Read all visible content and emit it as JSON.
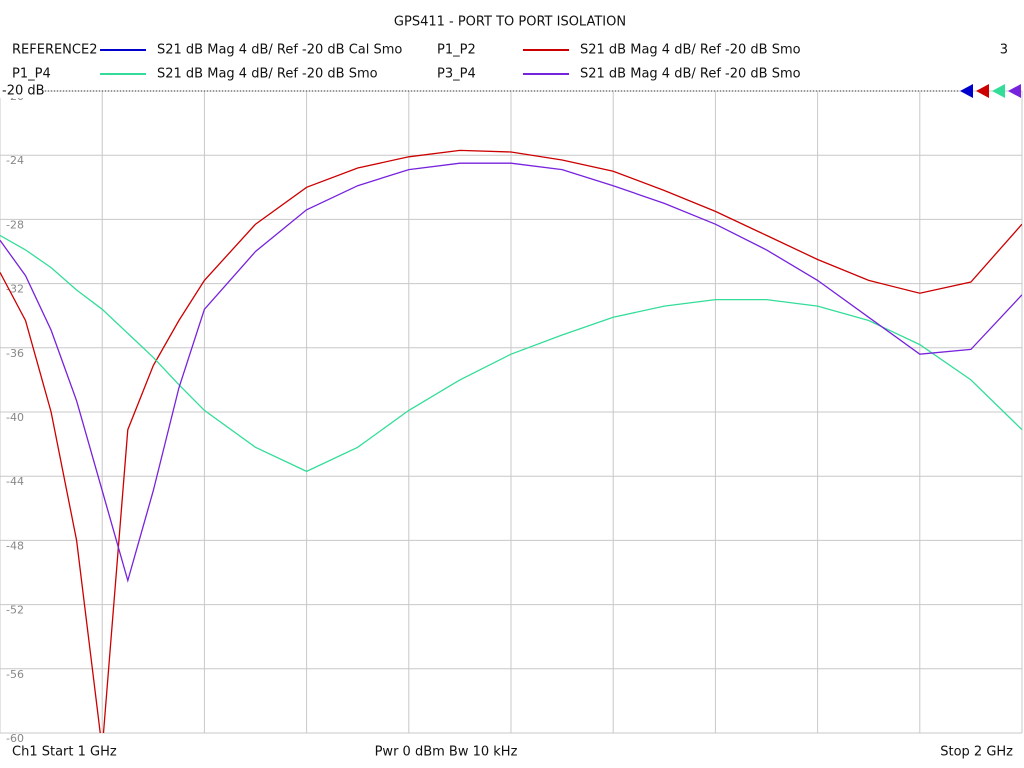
{
  "chart_data": {
    "type": "line",
    "title": "GPS411 - PORT TO PORT ISOLATION",
    "channel_number": "3",
    "reference_label": "-20 dB",
    "footer_left": "Ch1  Start  1 GHz",
    "footer_center": "Pwr  0 dBm  Bw  10 kHz",
    "footer_right": "Stop  2 GHz",
    "x": [
      1.0,
      1.025,
      1.05,
      1.075,
      1.1,
      1.125,
      1.15,
      1.175,
      1.2,
      1.25,
      1.3,
      1.35,
      1.4,
      1.45,
      1.5,
      1.55,
      1.6,
      1.65,
      1.7,
      1.75,
      1.8,
      1.85,
      1.9,
      1.95,
      2.0
    ],
    "xlim": [
      1,
      2
    ],
    "xticks": [
      1,
      1.1,
      1.2,
      1.3,
      1.4,
      1.5,
      1.6,
      1.7,
      1.8,
      1.9,
      2
    ],
    "ylim": [
      -60,
      -20
    ],
    "yticks": [
      -20,
      -24,
      -28,
      -32,
      -36,
      -40,
      -44,
      -48,
      -52,
      -56,
      -60
    ],
    "grid": true,
    "series": [
      {
        "name": "REFERENCE2",
        "description": "S21  dB Mag  4 dB/ Ref -20 dB  Cal Smo",
        "color": "#0000cc",
        "values": [
          null,
          null,
          null,
          null,
          null,
          null,
          null,
          null,
          null,
          null,
          null,
          null,
          null,
          null,
          null,
          null,
          null,
          null,
          null,
          null,
          null,
          null,
          null,
          null,
          null
        ]
      },
      {
        "name": "P1_P2",
        "description": "S21  dB Mag  4 dB/ Ref -20 dB  Smo",
        "color": "#cc0000",
        "values": [
          -31.3,
          -34.3,
          -40.0,
          -48.0,
          -61.0,
          -41.1,
          -37.1,
          -34.3,
          -31.8,
          -28.3,
          -26.0,
          -24.8,
          -24.1,
          -23.7,
          -23.8,
          -24.3,
          -25.0,
          -26.2,
          -27.5,
          -29.0,
          -30.5,
          -31.8,
          -32.6,
          -31.9,
          -28.3
        ]
      },
      {
        "name": "P1_P4",
        "description": "S21  dB Mag  4 dB/ Ref -20 dB  Smo",
        "color": "#33dd99",
        "values": [
          -29.0,
          -29.9,
          -31.0,
          -32.4,
          -33.6,
          -35.1,
          -36.6,
          -38.3,
          -39.9,
          -42.2,
          -43.7,
          -42.2,
          -39.9,
          -38.0,
          -36.4,
          -35.2,
          -34.1,
          -33.4,
          -33.0,
          -33.0,
          -33.4,
          -34.3,
          -35.8,
          -38.0,
          -41.1
        ]
      },
      {
        "name": "P3_P4",
        "description": "S21  dB Mag  4 dB/ Ref -20 dB  Smo",
        "color": "#7722dd",
        "values": [
          -29.3,
          -31.5,
          -34.9,
          -39.3,
          -44.9,
          -50.5,
          -44.9,
          -38.5,
          -33.6,
          -30.0,
          -27.4,
          -25.9,
          -24.9,
          -24.5,
          -24.5,
          -24.9,
          -25.9,
          -27.0,
          -28.3,
          -29.9,
          -31.8,
          -34.1,
          -36.4,
          -36.1,
          -32.7
        ]
      }
    ]
  }
}
